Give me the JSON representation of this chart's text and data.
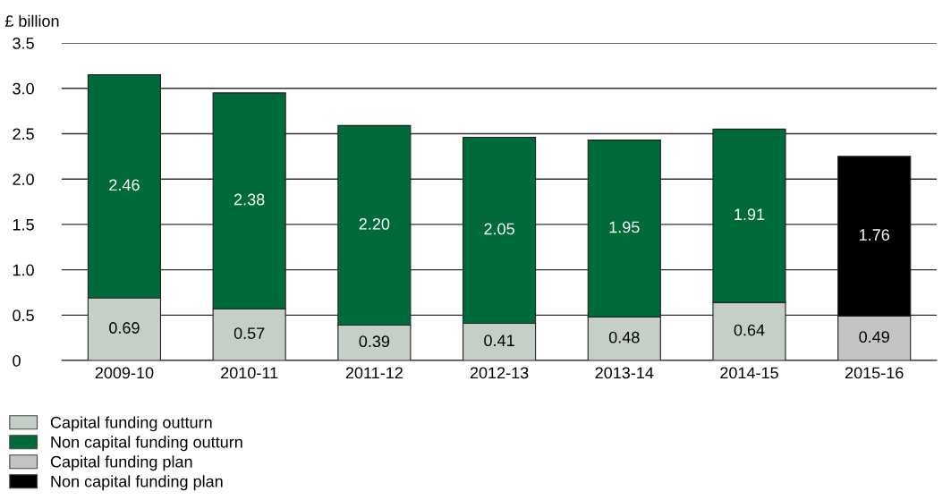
{
  "chart_data": {
    "type": "bar",
    "stacked": true,
    "ylabel": "£ billion",
    "categories": [
      "2009-10",
      "2010-11",
      "2011-12",
      "2012-13",
      "2013-14",
      "2014-15",
      "2015-16"
    ],
    "series": [
      {
        "name": "Capital funding outturn",
        "color": "#c6cfc7",
        "values": [
          0.69,
          0.57,
          0.39,
          0.41,
          0.48,
          0.64,
          null
        ],
        "value_labels": [
          "0.69",
          "0.57",
          "0.39",
          "0.41",
          "0.48",
          "0.64",
          null
        ]
      },
      {
        "name": "Non capital funding outturn",
        "color": "#006b3a",
        "values": [
          2.46,
          2.38,
          2.2,
          2.05,
          1.95,
          1.91,
          null
        ],
        "value_labels": [
          "2.46",
          "2.38",
          "2.20",
          "2.05",
          "1.95",
          "1.91",
          null
        ]
      },
      {
        "name": "Capital funding plan",
        "color": "#c4c4c4",
        "values": [
          null,
          null,
          null,
          null,
          null,
          null,
          0.49
        ],
        "value_labels": [
          null,
          null,
          null,
          null,
          null,
          null,
          "0.49"
        ]
      },
      {
        "name": "Non capital funding plan",
        "color": "#000000",
        "values": [
          null,
          null,
          null,
          null,
          null,
          null,
          1.76
        ],
        "value_labels": [
          null,
          null,
          null,
          null,
          null,
          null,
          "1.76"
        ]
      }
    ],
    "ylim": [
      0,
      3.5
    ],
    "yticks": [
      {
        "value": 0,
        "label": "0"
      },
      {
        "value": 0.5,
        "label": "0.5"
      },
      {
        "value": 1.0,
        "label": "1.0"
      },
      {
        "value": 1.5,
        "label": "1.5"
      },
      {
        "value": 2.0,
        "label": "2.0"
      },
      {
        "value": 2.5,
        "label": "2.5"
      },
      {
        "value": 3.0,
        "label": "3.0"
      },
      {
        "value": 3.5,
        "label": "3.5"
      }
    ],
    "grid": "y",
    "legend": "bottom left"
  }
}
